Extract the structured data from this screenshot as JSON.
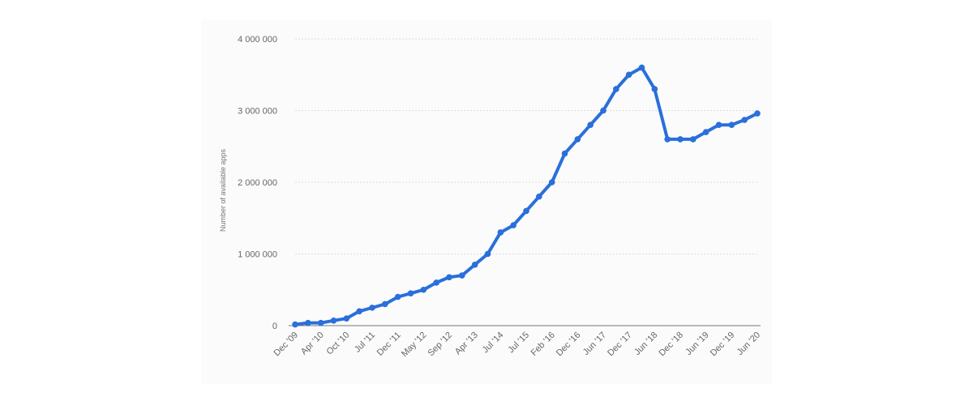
{
  "chart_data": {
    "type": "line",
    "title": "",
    "xlabel": "",
    "ylabel": "Number of available apps",
    "ylim": [
      0,
      4000000
    ],
    "yticks": [
      0,
      1000000,
      2000000,
      3000000,
      4000000
    ],
    "ytick_labels": [
      "0",
      "1 000 000",
      "2 000 000",
      "3 000 000",
      "4 000 000"
    ],
    "xtick_labels": [
      "Dec '09",
      "Apr '10",
      "Oct '10",
      "Jul '11",
      "Dec '11",
      "May '12",
      "Sep '12",
      "Apr '13",
      "Jul '14",
      "Jul '15",
      "Feb '16",
      "Dec '16",
      "Jun '17",
      "Dec '17",
      "Jun '18",
      "Dec '18",
      "Jun '19",
      "Dec '19",
      "Jun '20"
    ],
    "grid": true,
    "line_color": "#2a6fdb",
    "series": [
      {
        "values": [
          16000,
          38000,
          38000,
          70000,
          100000,
          200000,
          250000,
          300000,
          400000,
          450000,
          500000,
          600000,
          675000,
          700000,
          850000,
          1000000,
          1300000,
          1400000,
          1600000,
          1800000,
          2000000,
          2400000,
          2600000,
          2800000,
          3000000,
          3300000,
          3500000,
          3600000,
          3300000,
          2600000,
          2600000,
          2600000,
          2700000,
          2800000,
          2800000,
          2870000,
          2960000
        ]
      }
    ]
  }
}
